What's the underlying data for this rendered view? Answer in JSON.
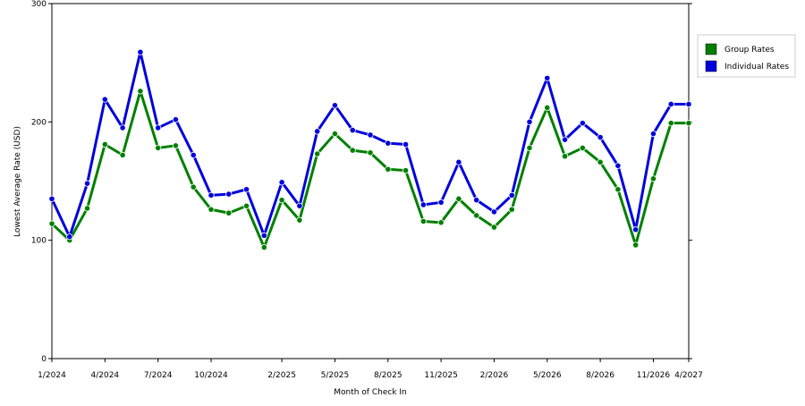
{
  "chart_data": {
    "type": "line",
    "xlabel": "Month of Check In",
    "ylabel": "Lowest Average Rate (USD)",
    "ylim": [
      0,
      300
    ],
    "yticks": [
      0,
      100,
      200,
      300
    ],
    "x": [
      "1/2024",
      "2/2024",
      "3/2024",
      "4/2024",
      "5/2024",
      "6/2024",
      "7/2024",
      "8/2024",
      "9/2024",
      "10/2024",
      "11/2024",
      "12/2024",
      "1/2025",
      "2/2025",
      "3/2025",
      "4/2025",
      "5/2025",
      "6/2025",
      "7/2025",
      "8/2025",
      "9/2025",
      "10/2025",
      "11/2025",
      "12/2025",
      "1/2026",
      "2/2026",
      "3/2026",
      "4/2026",
      "5/2026",
      "6/2026",
      "7/2026",
      "8/2026",
      "9/2026",
      "10/2026",
      "11/2026",
      "12/2026",
      "4/2027"
    ],
    "xtick_labels": [
      "1/2024",
      "4/2024",
      "7/2024",
      "10/2024",
      "2/2025",
      "5/2025",
      "8/2025",
      "11/2025",
      "2/2026",
      "5/2026",
      "8/2026",
      "11/2026",
      "4/2027"
    ],
    "grid": true,
    "legend_position": "right",
    "series": [
      {
        "name": "Group Rates",
        "color": "#008000",
        "values": [
          114,
          100,
          127,
          181,
          172,
          226,
          178,
          180,
          145,
          126,
          123,
          129,
          94,
          134,
          117,
          173,
          190,
          176,
          174,
          160,
          159,
          116,
          115,
          135,
          121,
          111,
          126,
          178,
          212,
          171,
          178,
          166,
          143,
          96,
          152,
          199,
          199
        ]
      },
      {
        "name": "Individual Rates",
        "color": "#0000dd",
        "values": [
          135,
          103,
          148,
          219,
          195,
          259,
          195,
          202,
          172,
          138,
          139,
          143,
          104,
          149,
          129,
          192,
          214,
          193,
          189,
          182,
          181,
          130,
          132,
          166,
          134,
          124,
          138,
          200,
          237,
          185,
          199,
          187,
          163,
          109,
          190,
          215,
          215
        ]
      }
    ]
  }
}
